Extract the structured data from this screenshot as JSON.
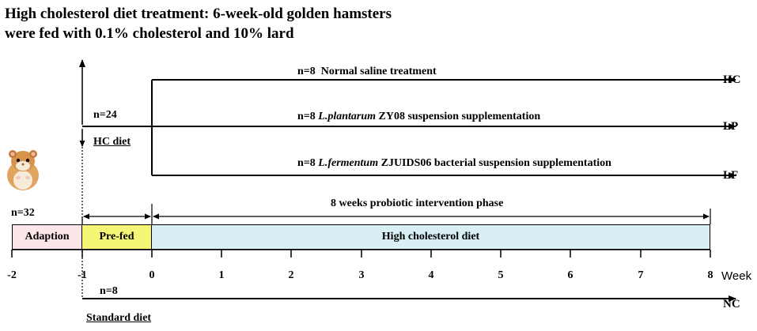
{
  "title": {
    "line1": "High cholesterol diet treatment: 6-week-old golden hamsters",
    "line2": "were fed with 0.1% cholesterol and 10% lard"
  },
  "groups": [
    {
      "n": "n=8",
      "pre": "",
      "italic": "",
      "post": "Normal saline treatment",
      "end": "HC"
    },
    {
      "n": "n=8",
      "pre": "",
      "italic": "L.plantarum",
      "post": "ZY08 suspension supplementation",
      "end": "LP"
    },
    {
      "n": "n=8",
      "pre": "",
      "italic": "L.fermentum",
      "post": "ZJUIDS06 bacterial suspension supplementation",
      "end": "LF"
    }
  ],
  "labels": {
    "n24": "n=24",
    "hc_diet": "HC diet",
    "n32": "n=32",
    "n8_nc": "n=8",
    "standard_diet": "Standard diet",
    "nc_end": "NC",
    "intervention": "8 weeks probiotic intervention phase"
  },
  "phases": {
    "adaption": "Adaption",
    "prefed": "Pre-fed",
    "hcd": "High cholesterol diet"
  },
  "colors": {
    "adaption": "#fde6ea",
    "prefed": "#f6f676",
    "hcd": "#d8f0f4"
  },
  "timeline": {
    "ticks": [
      "-2",
      "-1",
      "0",
      "1",
      "2",
      "3",
      "4",
      "5",
      "6",
      "7",
      "8"
    ],
    "unit": "Week"
  }
}
